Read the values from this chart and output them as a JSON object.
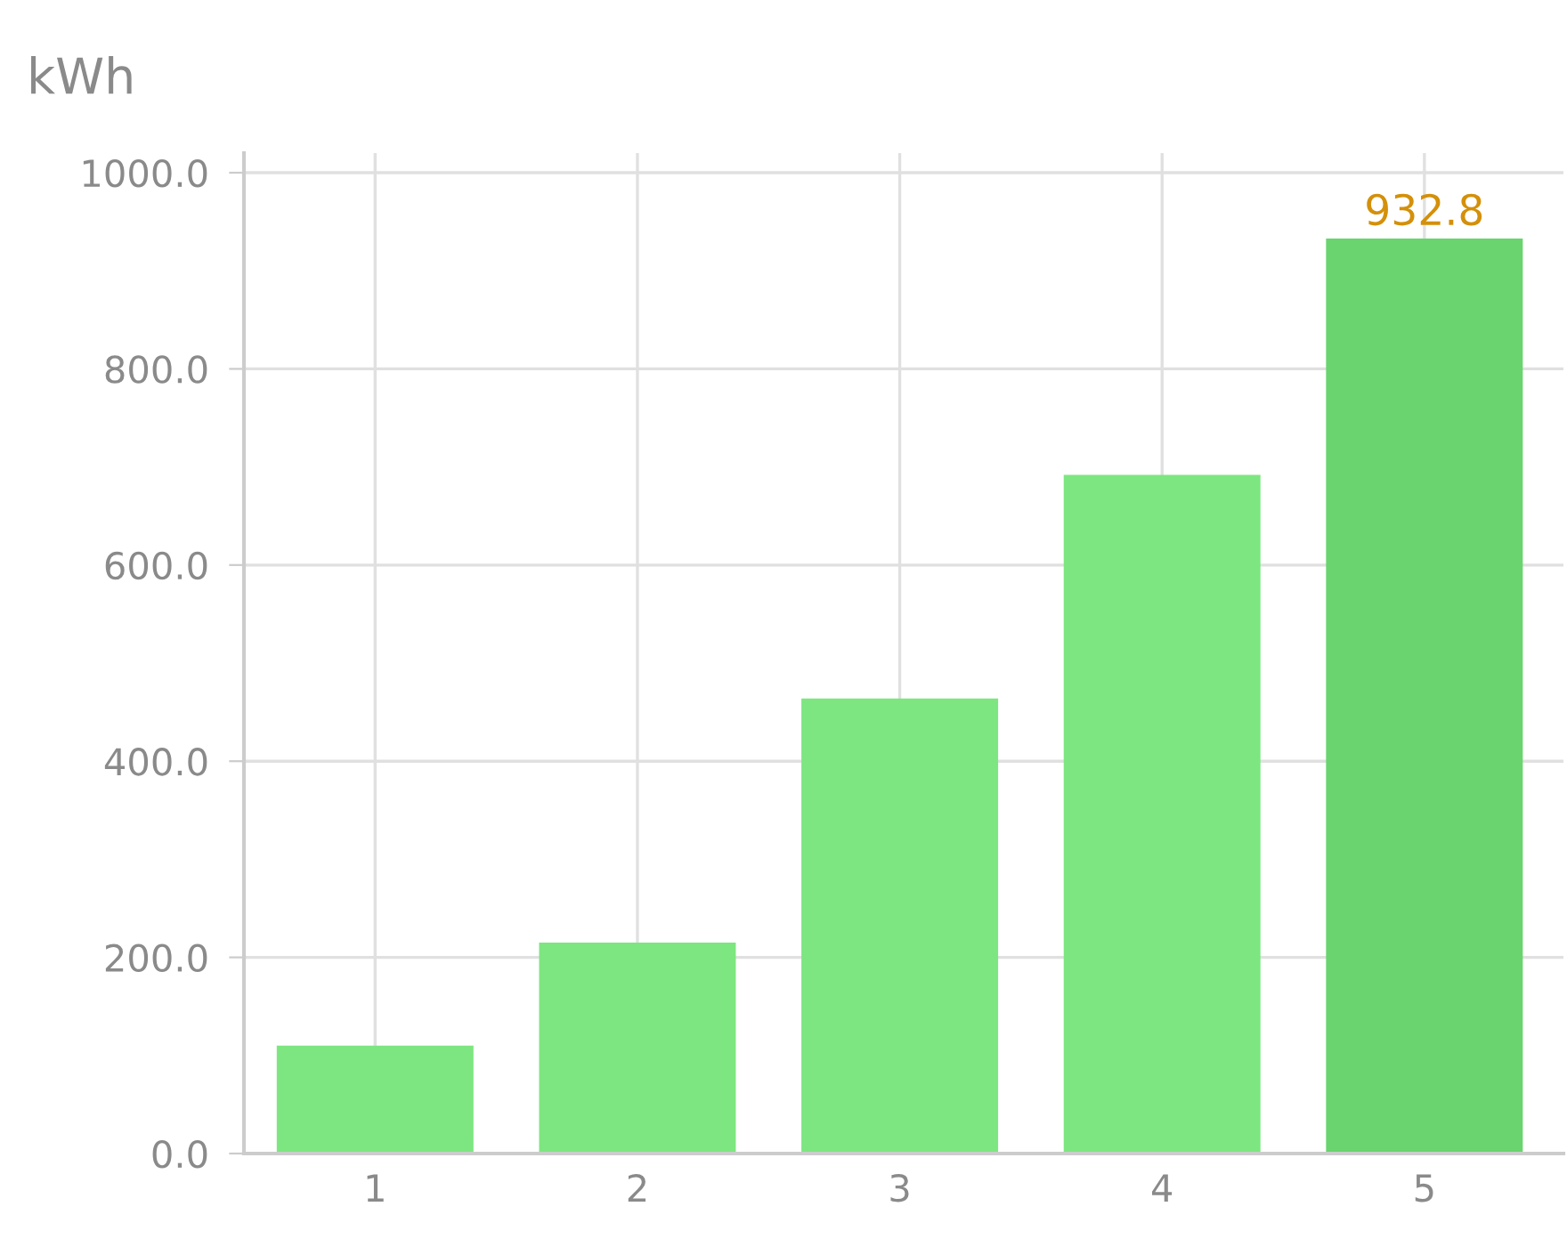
{
  "chart_data": {
    "type": "bar",
    "ylabel": "kWh",
    "categories": [
      "1",
      "2",
      "3",
      "4",
      "5"
    ],
    "values": [
      110,
      215,
      464,
      692,
      932.8
    ],
    "colors": [
      "#7de680",
      "#7de680",
      "#7de680",
      "#7de680",
      "#6ad46e"
    ],
    "value_labels": [
      null,
      null,
      null,
      null,
      "932.8"
    ],
    "ylim": [
      0,
      1020
    ],
    "yticks": [
      {
        "value": 0,
        "label": "0.0"
      },
      {
        "value": 200,
        "label": "200.0"
      },
      {
        "value": 400,
        "label": "400.0"
      },
      {
        "value": 600,
        "label": "600.0"
      },
      {
        "value": 800,
        "label": "800.0"
      },
      {
        "value": 1000,
        "label": "1000.0"
      }
    ],
    "grid": true,
    "legend": false
  }
}
